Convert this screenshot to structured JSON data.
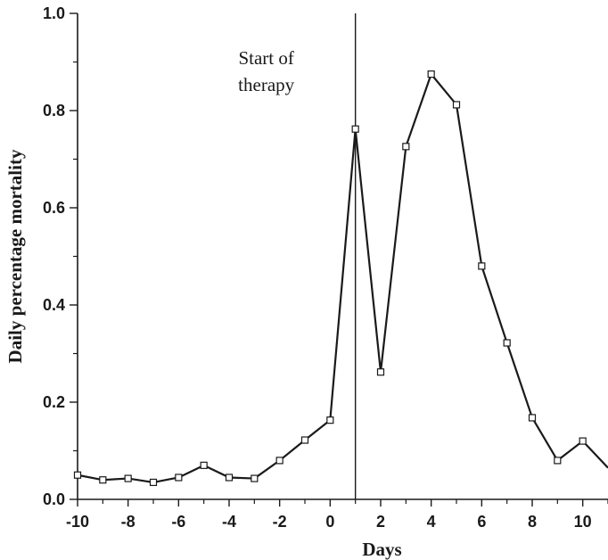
{
  "chart_data": {
    "type": "line",
    "title": "",
    "xlabel": "Days",
    "ylabel": "Daily percentage mortality",
    "xlim": [
      -10,
      11
    ],
    "ylim": [
      0.0,
      1.0
    ],
    "x_ticks": [
      -10,
      -8,
      -6,
      -4,
      -2,
      0,
      2,
      4,
      6,
      8,
      10
    ],
    "x_tick_labels": [
      "-10",
      "-8",
      "-6",
      "-4",
      "-2",
      "0",
      "2",
      "4",
      "6",
      "8",
      "10"
    ],
    "y_ticks": [
      0.0,
      0.2,
      0.4,
      0.6,
      0.8,
      1.0
    ],
    "y_tick_labels": [
      "0.0",
      "0.2",
      "0.4",
      "0.6",
      "0.8",
      "1.0"
    ],
    "grid": false,
    "legend": "none",
    "marker": "open-square",
    "series": [
      {
        "x": [
          -10,
          -9,
          -8,
          -7,
          -6,
          -5,
          -4,
          -3,
          -2,
          -1,
          0,
          1,
          2,
          3,
          4,
          5,
          6,
          7,
          8,
          9,
          10,
          11
        ],
        "values": [
          0.05,
          0.04,
          0.043,
          0.035,
          0.045,
          0.07,
          0.045,
          0.043,
          0.08,
          0.122,
          0.163,
          0.762,
          0.262,
          0.726,
          0.875,
          0.812,
          0.48,
          0.322,
          0.168,
          0.08,
          0.12,
          0.065
        ]
      }
    ],
    "annotations": [
      {
        "type": "vline",
        "x": 1,
        "lines": [
          "Start of",
          "therapy"
        ]
      }
    ]
  },
  "colors": {
    "line": "#1a1a1a",
    "axis": "#1a1a1a",
    "marker_fill": "#ffffff"
  }
}
